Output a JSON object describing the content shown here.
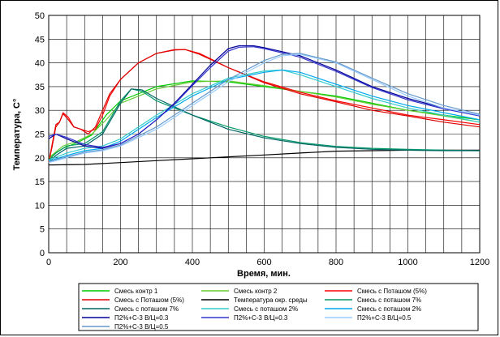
{
  "chart_data": {
    "type": "line",
    "title": "",
    "xlabel": "Время, мин.",
    "ylabel": "Температура, С°",
    "xlim": [
      0,
      1200
    ],
    "ylim": [
      0,
      50
    ],
    "xticks": [
      0,
      200,
      400,
      600,
      800,
      1000,
      1200
    ],
    "yticks": [
      0,
      5,
      10,
      15,
      20,
      25,
      30,
      35,
      40,
      45,
      50
    ],
    "grid": true,
    "legend_position": "bottom",
    "series": [
      {
        "name": "Смесь контр 1",
        "color": "#00cc00",
        "x": [
          0,
          40,
          80,
          120,
          160,
          200,
          300,
          400,
          500,
          600,
          700,
          800,
          900,
          1000,
          1100,
          1200
        ],
        "y": [
          20,
          22,
          23.2,
          24.8,
          29,
          32,
          35,
          36.2,
          36,
          35,
          34,
          33,
          31.5,
          30,
          29,
          28
        ]
      },
      {
        "name": "Смесь контр 2",
        "color": "#66cc33",
        "x": [
          0,
          40,
          80,
          120,
          160,
          200,
          300,
          400,
          500,
          600,
          700,
          800,
          900,
          1000,
          1100,
          1200
        ],
        "y": [
          20,
          22.5,
          23.5,
          25,
          28,
          31.5,
          34.5,
          36,
          36.2,
          35.2,
          34,
          32.8,
          31.3,
          30,
          28.8,
          27.5
        ]
      },
      {
        "name": "Смесь с Поташом (5%)",
        "color": "#ff0000",
        "x": [
          0,
          10,
          20,
          30,
          40,
          55,
          70,
          90,
          110,
          130,
          150,
          170,
          200,
          250,
          300,
          350,
          380,
          420,
          500,
          600,
          700,
          800,
          900,
          1000,
          1100,
          1200
        ],
        "y": [
          19,
          23,
          27,
          27.5,
          29.5,
          28.5,
          26.5,
          26,
          25.5,
          26,
          29,
          33,
          36.5,
          40,
          42,
          42.8,
          42.8,
          42,
          39,
          36,
          33.8,
          32,
          30.5,
          29,
          28,
          27
        ]
      },
      {
        "name": "Смесь с Поташом (5%)",
        "color": "#dd0000",
        "x": [
          0,
          10,
          20,
          30,
          40,
          55,
          70,
          90,
          110,
          130,
          150,
          170,
          200,
          250,
          300,
          350,
          380,
          420,
          500,
          600,
          700,
          800,
          900,
          1000,
          1100,
          1200
        ],
        "y": [
          19,
          22.5,
          26.5,
          27.5,
          29.3,
          28,
          26.5,
          26,
          25,
          26.5,
          30,
          33.5,
          36.5,
          40,
          42,
          42.7,
          42.8,
          41.8,
          39,
          35.8,
          33.5,
          31.8,
          30,
          28.8,
          27.5,
          26.5
        ]
      },
      {
        "name": "Температура окр. среды",
        "color": "#000000",
        "x": [
          0,
          100,
          200,
          300,
          400,
          500,
          600,
          700,
          800,
          900,
          1000,
          1100,
          1200
        ],
        "y": [
          18.5,
          18.6,
          19,
          19.4,
          19.8,
          20.2,
          20.6,
          21,
          21.4,
          21.5,
          21.6,
          21.6,
          21.6
        ]
      },
      {
        "name": "Смесь с поташом 7%",
        "color": "#009966",
        "x": [
          0,
          20,
          50,
          100,
          150,
          200,
          230,
          260,
          300,
          400,
          500,
          600,
          700,
          800,
          900,
          1000,
          1100,
          1200
        ],
        "y": [
          19.5,
          21,
          22.5,
          23,
          25.5,
          32,
          34.5,
          34,
          32,
          29,
          26.5,
          24.5,
          23.2,
          22.4,
          22,
          21.8,
          21.6,
          21.5
        ]
      },
      {
        "name": "Смесь с поташом 7%",
        "color": "#006666",
        "x": [
          0,
          20,
          50,
          100,
          150,
          200,
          230,
          260,
          300,
          400,
          500,
          600,
          700,
          800,
          900,
          1000,
          1100,
          1200
        ],
        "y": [
          19,
          20.5,
          22,
          22.5,
          25,
          31.5,
          34.5,
          34.3,
          32.5,
          29,
          26,
          24.2,
          23,
          22.2,
          21.8,
          21.6,
          21.5,
          21.5
        ]
      },
      {
        "name": "Смесь с поташом 2%",
        "color": "#33cccc",
        "x": [
          0,
          50,
          100,
          150,
          200,
          300,
          400,
          500,
          600,
          650,
          700,
          800,
          900,
          1000,
          1100,
          1200
        ],
        "y": [
          19.5,
          21,
          22,
          22.5,
          24,
          29,
          33.5,
          36.8,
          38.3,
          38.5,
          37.5,
          35,
          32.5,
          30.5,
          29,
          27.5
        ]
      },
      {
        "name": "Смесь с поташом 2%",
        "color": "#00aaee",
        "x": [
          0,
          50,
          100,
          150,
          200,
          300,
          400,
          500,
          600,
          650,
          700,
          800,
          900,
          1000,
          1100,
          1200
        ],
        "y": [
          19.3,
          20.5,
          21.5,
          22,
          23.5,
          28.5,
          33,
          36.5,
          38,
          38.5,
          38,
          35.5,
          33,
          31,
          29.5,
          28
        ]
      },
      {
        "name": "П2%+С-3 В/Ц=0.3",
        "color": "#000099",
        "x": [
          0,
          20,
          50,
          100,
          150,
          200,
          250,
          300,
          350,
          400,
          450,
          500,
          530,
          570,
          600,
          700,
          800,
          900,
          1000,
          1100,
          1200
        ],
        "y": [
          24,
          25,
          24,
          22.5,
          22,
          23,
          25,
          28,
          31.5,
          35.5,
          39.5,
          43,
          43.6,
          43.6,
          43.2,
          41.5,
          38.5,
          35,
          32.5,
          30.5,
          29
        ]
      },
      {
        "name": "П2%+С-3 В/Ц=0.3",
        "color": "#3333cc",
        "x": [
          0,
          20,
          50,
          100,
          150,
          200,
          250,
          300,
          350,
          400,
          450,
          500,
          530,
          570,
          600,
          700,
          800,
          900,
          1000,
          1100,
          1200
        ],
        "y": [
          24.5,
          25,
          24.3,
          22.8,
          22.2,
          23,
          25,
          28,
          31.3,
          35.2,
          39,
          42.5,
          43.3,
          43.4,
          43,
          41.2,
          38.2,
          34.8,
          32.2,
          30.3,
          28.8
        ]
      },
      {
        "name": "П2%+С-3 В/Ц=0.5",
        "color": "#99ccff",
        "x": [
          0,
          50,
          100,
          150,
          200,
          300,
          400,
          500,
          600,
          650,
          700,
          800,
          900,
          1000,
          1100,
          1200
        ],
        "y": [
          19,
          20,
          21,
          21.5,
          22.5,
          26,
          31,
          36,
          40,
          41.5,
          41.8,
          40,
          36.5,
          33,
          30.5,
          29
        ]
      },
      {
        "name": "П2%+С-3 В/Ц=0.5",
        "color": "#6699cc",
        "x": [
          0,
          50,
          100,
          150,
          200,
          300,
          400,
          500,
          600,
          650,
          700,
          800,
          900,
          1000,
          1100,
          1200
        ],
        "y": [
          19.2,
          20.2,
          21.2,
          21.7,
          22.7,
          26.5,
          31.5,
          36.5,
          40.5,
          41.8,
          42,
          40.2,
          36.8,
          33.5,
          31,
          29.2
        ]
      }
    ],
    "legend_labels": [
      "Смесь контр 1",
      "Смесь контр 2",
      "Смесь с Поташом (5%)",
      "Смесь с Поташом (5%)",
      "Температура окр. среды",
      "Смесь с поташом 7%",
      "Смесь с поташом 7%",
      "Смесь с поташом 2%",
      "Смесь с поташом 2%",
      "П2%+С-3 В/Ц=0.3",
      "П2%+С-3 В/Ц=0.3",
      "П2%+С-3 В/Ц=0.5",
      "П2%+С-3 В/Ц=0.5"
    ]
  }
}
